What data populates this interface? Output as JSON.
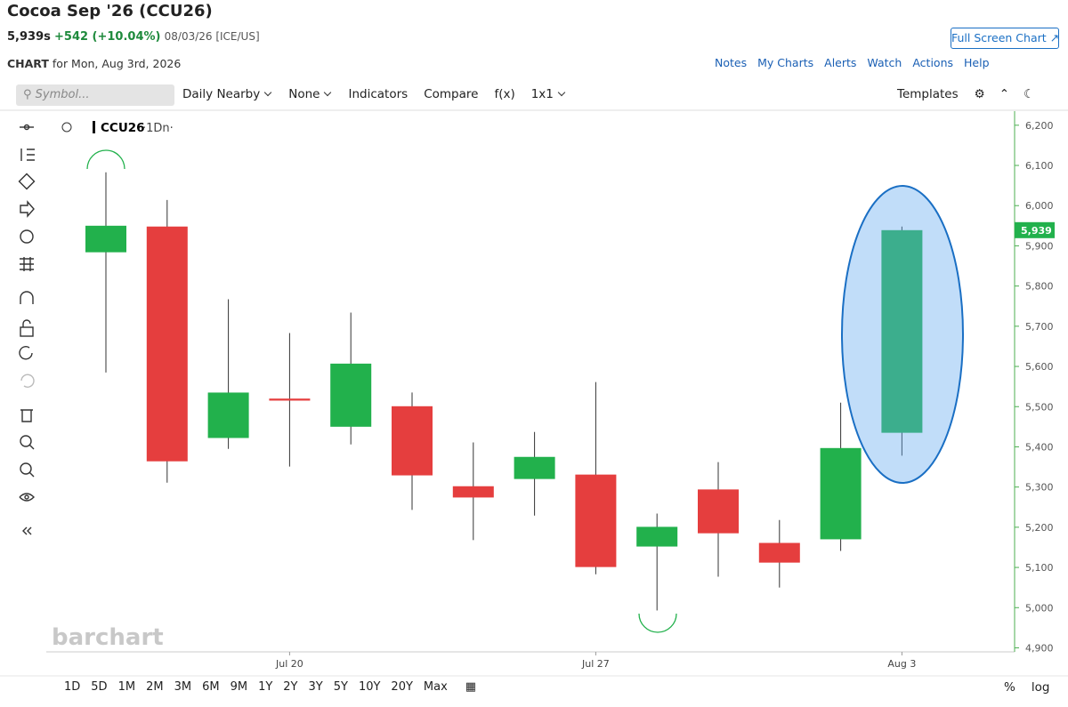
{
  "header": {
    "title": "Cocoa Sep '26 (CCU26)",
    "price": "5,939s",
    "change": "+542 (+10.04%)",
    "date_exchange": "08/03/26 [ICE/US]",
    "full_screen": "Full Screen Chart"
  },
  "subheader": {
    "label": "CHART",
    "date": "for Mon, Aug 3rd, 2026"
  },
  "links": [
    "Notes",
    "My Charts",
    "Alerts",
    "Watch",
    "Actions",
    "Help"
  ],
  "toolbar": {
    "symbol_placeholder": "Symbol...",
    "items": [
      "Daily Nearby",
      "None",
      "Indicators",
      "Compare",
      "f(x)",
      "1x1"
    ],
    "templates": "Templates"
  },
  "watermark": "barchart",
  "chart_data": {
    "type": "candlestick",
    "symbol": "CCU26",
    "interval": "·1Dn·",
    "categories": [
      null,
      null,
      null,
      "Jul 20",
      null,
      null,
      null,
      null,
      "Jul 27",
      null,
      null,
      null,
      null,
      "Aug 3"
    ],
    "open": [
      5884,
      5948,
      5422,
      5520,
      5450,
      5501,
      5302,
      5320,
      5331,
      5152,
      5294,
      5161,
      5170,
      5435
    ],
    "high": [
      6083,
      6014,
      5767,
      5683,
      5734,
      5535,
      5411,
      5437,
      5561,
      5234,
      5362,
      5218,
      5510,
      5948
    ],
    "low": [
      5585,
      5311,
      5395,
      5351,
      5406,
      5243,
      5168,
      5229,
      5083,
      4993,
      5077,
      5050,
      5141,
      5378
    ],
    "close": [
      5950,
      5364,
      5535,
      5515,
      5607,
      5329,
      5274,
      5375,
      5101,
      5201,
      5185,
      5112,
      5397,
      5939
    ],
    "up_color": "#22b14c",
    "down_color": "#e53e3e",
    "ylim": [
      4890,
      6235
    ],
    "yticks": [
      {
        "value": 4900,
        "label": "4,900"
      },
      {
        "value": 5000,
        "label": "5,000"
      },
      {
        "value": 5100,
        "label": "5,100"
      },
      {
        "value": 5200,
        "label": "5,200"
      },
      {
        "value": 5300,
        "label": "5,300"
      },
      {
        "value": 5400,
        "label": "5,400"
      },
      {
        "value": 5500,
        "label": "5,500"
      },
      {
        "value": 5600,
        "label": "5,600"
      },
      {
        "value": 5700,
        "label": "5,700"
      },
      {
        "value": 5800,
        "label": "5,800"
      },
      {
        "value": 5900,
        "label": "5,900"
      },
      {
        "value": 6000,
        "label": "6,000"
      },
      {
        "value": 6100,
        "label": "6,100"
      },
      {
        "value": 6200,
        "label": "6,200"
      }
    ],
    "price_tag": {
      "value": 5939,
      "label": "5,939"
    }
  },
  "ranges": [
    "1D",
    "5D",
    "1M",
    "2M",
    "3M",
    "6M",
    "9M",
    "1Y",
    "2Y",
    "3Y",
    "5Y",
    "10Y",
    "20Y",
    "Max"
  ],
  "bottom_right": [
    "%",
    "log"
  ]
}
